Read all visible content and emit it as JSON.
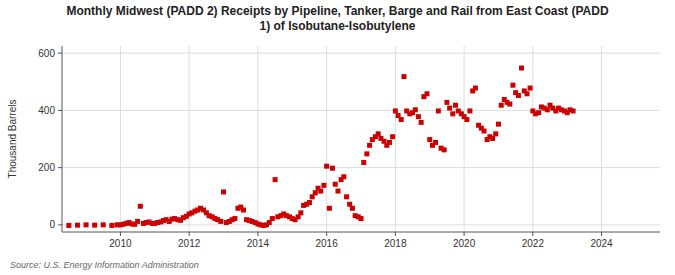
{
  "chart_data": {
    "type": "scatter",
    "title": "Monthly Midwest (PADD 2) Receipts by Pipeline, Tanker, Barge and Rail from East Coast (PADD\n1) of Isobutane-Isobutylene",
    "ylabel": "Thousand Barrels",
    "annotation": "Source: U.S. Energy Information Administration",
    "color": "#cc0000",
    "marker": "square",
    "grid": true,
    "xlim": [
      2008.3,
      2025.7
    ],
    "ylim": [
      -25,
      625
    ],
    "xticks": [
      2010,
      2012,
      2014,
      2016,
      2018,
      2020,
      2022,
      2024
    ],
    "yticks": [
      0,
      200,
      400,
      600
    ],
    "x": [
      2008.5,
      2008.75,
      2009.0,
      2009.25,
      2009.5,
      2009.75,
      2009.9,
      2010.0,
      2010.08,
      2010.17,
      2010.25,
      2010.33,
      2010.42,
      2010.5,
      2010.58,
      2010.67,
      2010.75,
      2010.83,
      2010.92,
      2011.0,
      2011.08,
      2011.17,
      2011.25,
      2011.33,
      2011.42,
      2011.5,
      2011.58,
      2011.67,
      2011.75,
      2011.83,
      2011.92,
      2012.0,
      2012.08,
      2012.17,
      2012.25,
      2012.33,
      2012.42,
      2012.5,
      2012.58,
      2012.67,
      2012.75,
      2012.83,
      2012.92,
      2013.0,
      2013.08,
      2013.17,
      2013.25,
      2013.33,
      2013.42,
      2013.5,
      2013.58,
      2013.67,
      2013.75,
      2013.83,
      2013.92,
      2014.0,
      2014.08,
      2014.17,
      2014.25,
      2014.33,
      2014.42,
      2014.5,
      2014.58,
      2014.67,
      2014.75,
      2014.83,
      2014.92,
      2015.0,
      2015.08,
      2015.17,
      2015.25,
      2015.33,
      2015.42,
      2015.5,
      2015.58,
      2015.67,
      2015.75,
      2015.83,
      2015.92,
      2016.0,
      2016.08,
      2016.17,
      2016.25,
      2016.33,
      2016.42,
      2016.5,
      2016.58,
      2016.67,
      2016.75,
      2016.83,
      2016.92,
      2017.0,
      2017.08,
      2017.17,
      2017.25,
      2017.33,
      2017.42,
      2017.5,
      2017.58,
      2017.67,
      2017.75,
      2017.83,
      2017.92,
      2018.0,
      2018.08,
      2018.17,
      2018.25,
      2018.33,
      2018.42,
      2018.5,
      2018.58,
      2018.67,
      2018.75,
      2018.83,
      2018.92,
      2019.0,
      2019.08,
      2019.17,
      2019.25,
      2019.33,
      2019.42,
      2019.5,
      2019.58,
      2019.67,
      2019.75,
      2019.83,
      2019.92,
      2020.0,
      2020.08,
      2020.17,
      2020.25,
      2020.33,
      2020.42,
      2020.5,
      2020.58,
      2020.67,
      2020.75,
      2020.83,
      2020.92,
      2021.0,
      2021.08,
      2021.17,
      2021.25,
      2021.33,
      2021.42,
      2021.5,
      2021.58,
      2021.67,
      2021.75,
      2021.83,
      2021.92,
      2022.0,
      2022.08,
      2022.17,
      2022.25,
      2022.33,
      2022.42,
      2022.5,
      2022.58,
      2022.67,
      2022.75,
      2022.83,
      2022.92,
      2023.0,
      2023.08,
      2023.17
    ],
    "values": [
      -2,
      -1,
      0,
      -1,
      0,
      -2,
      0,
      0,
      2,
      5,
      8,
      3,
      2,
      12,
      65,
      5,
      8,
      10,
      5,
      5,
      8,
      10,
      15,
      18,
      12,
      20,
      22,
      18,
      16,
      25,
      30,
      38,
      42,
      48,
      52,
      58,
      52,
      42,
      32,
      28,
      22,
      18,
      12,
      115,
      8,
      12,
      18,
      22,
      58,
      62,
      52,
      18,
      15,
      12,
      8,
      3,
      0,
      -2,
      0,
      8,
      22,
      158,
      28,
      32,
      38,
      32,
      28,
      22,
      18,
      28,
      42,
      68,
      72,
      78,
      98,
      112,
      128,
      118,
      138,
      205,
      58,
      198,
      142,
      118,
      158,
      168,
      98,
      72,
      58,
      32,
      28,
      22,
      218,
      248,
      278,
      298,
      308,
      318,
      302,
      292,
      278,
      288,
      308,
      398,
      382,
      368,
      518,
      398,
      388,
      392,
      402,
      378,
      358,
      448,
      458,
      298,
      278,
      288,
      398,
      268,
      262,
      428,
      408,
      388,
      418,
      398,
      388,
      378,
      368,
      398,
      468,
      478,
      348,
      338,
      328,
      298,
      308,
      302,
      318,
      352,
      418,
      438,
      428,
      422,
      488,
      462,
      452,
      548,
      468,
      458,
      478,
      398,
      388,
      392,
      412,
      408,
      402,
      418,
      408,
      398,
      408,
      402,
      398,
      392,
      402,
      398
    ]
  }
}
